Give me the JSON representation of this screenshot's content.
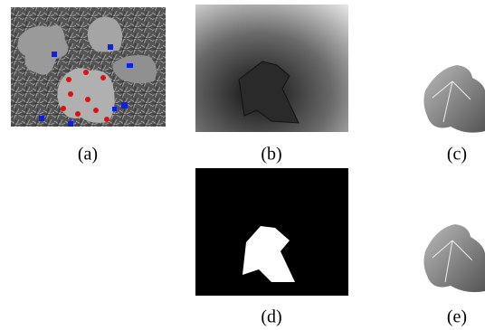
{
  "panels": [
    {
      "label": "(a)"
    },
    {
      "label": "(b)"
    },
    {
      "label": "(c)"
    },
    {
      "label": "(d)"
    },
    {
      "label": "(e)"
    }
  ]
}
